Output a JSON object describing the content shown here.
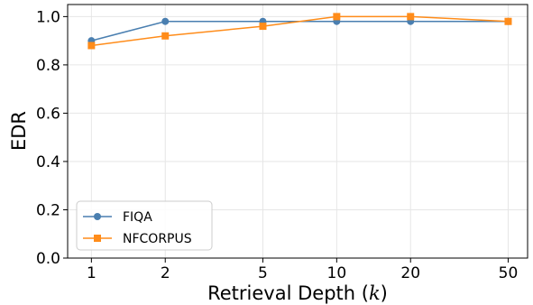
{
  "chart_data": {
    "type": "line",
    "x": [
      1,
      2,
      5,
      10,
      20,
      50
    ],
    "x_tick_labels": [
      "1",
      "2",
      "5",
      "10",
      "20",
      "50"
    ],
    "x_scale": "log",
    "series": [
      {
        "name": "FIQA",
        "values": [
          0.9,
          0.98,
          0.98,
          0.98,
          0.98,
          0.98
        ],
        "color": "#4a7fb0",
        "marker": "circle"
      },
      {
        "name": "NFCORPUS",
        "values": [
          0.88,
          0.92,
          0.96,
          1.0,
          1.0,
          0.98
        ],
        "color": "#ff8c1a",
        "marker": "square"
      }
    ],
    "ylim": [
      0.0,
      1.05
    ],
    "y_ticks": [
      "0.0",
      "0.2",
      "0.4",
      "0.6",
      "0.8",
      "1.0"
    ],
    "xlabel_text": "Retrieval Depth (",
    "xlabel_var": "k",
    "xlabel_close": ")",
    "ylabel": "EDR",
    "grid": true,
    "legend_position": "lower-left"
  }
}
